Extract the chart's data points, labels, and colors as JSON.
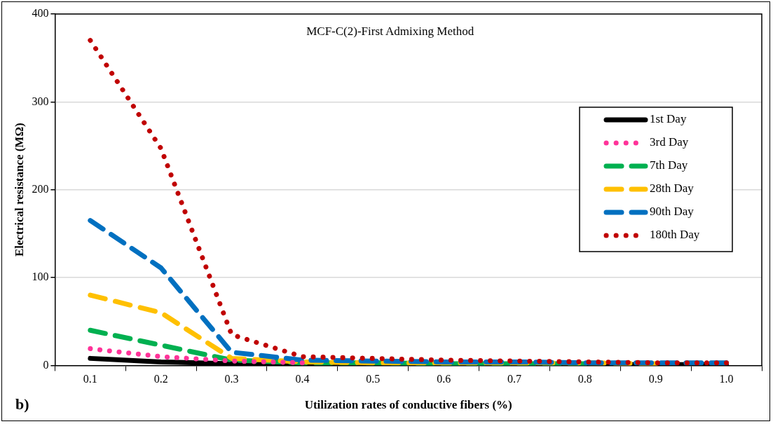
{
  "chart_data": {
    "type": "line",
    "title": "MCF-C(2)-First Admixing Method",
    "xlabel": "Utilization rates of conductive fibers (%)",
    "ylabel": "Electrical resistance (MΩ)",
    "annotations": [
      "b)"
    ],
    "categories": [
      "0.1",
      "0.2",
      "0.3",
      "0.4",
      "0.5",
      "0.6",
      "0.7",
      "0.8",
      "0.9",
      "1.0"
    ],
    "ylim": [
      0,
      400
    ],
    "yticks": [
      0,
      100,
      200,
      300,
      400
    ],
    "grid": "y",
    "legend": "right",
    "marker": "none",
    "series": [
      {
        "name": "1st Day",
        "color": "#000000",
        "line_style": "solid",
        "values": [
          8,
          4,
          2,
          1,
          1,
          1,
          1,
          1,
          1,
          1
        ]
      },
      {
        "name": "3rd Day",
        "color": "#ff3399",
        "line_style": "dotted",
        "values": [
          19,
          10,
          5,
          3,
          null,
          null,
          null,
          null,
          null,
          null
        ]
      },
      {
        "name": "7th Day",
        "color": "#00b050",
        "line_style": "dashed",
        "values": [
          40,
          23,
          6,
          3,
          3,
          2,
          2,
          2,
          null,
          null
        ]
      },
      {
        "name": "28th Day",
        "color": "#ffc000",
        "line_style": "dashed",
        "values": [
          80,
          60,
          8,
          4,
          3,
          3,
          3,
          3,
          2,
          null
        ]
      },
      {
        "name": "90th Day",
        "color": "#0070c0",
        "line_style": "dashed",
        "values": [
          165,
          111,
          15,
          6,
          5,
          4,
          4,
          3,
          3,
          3
        ]
      },
      {
        "name": "180th Day",
        "color": "#c00000",
        "line_style": "dotted",
        "values": [
          370,
          247,
          35,
          10,
          8,
          6,
          5,
          4,
          3,
          3
        ]
      }
    ]
  }
}
